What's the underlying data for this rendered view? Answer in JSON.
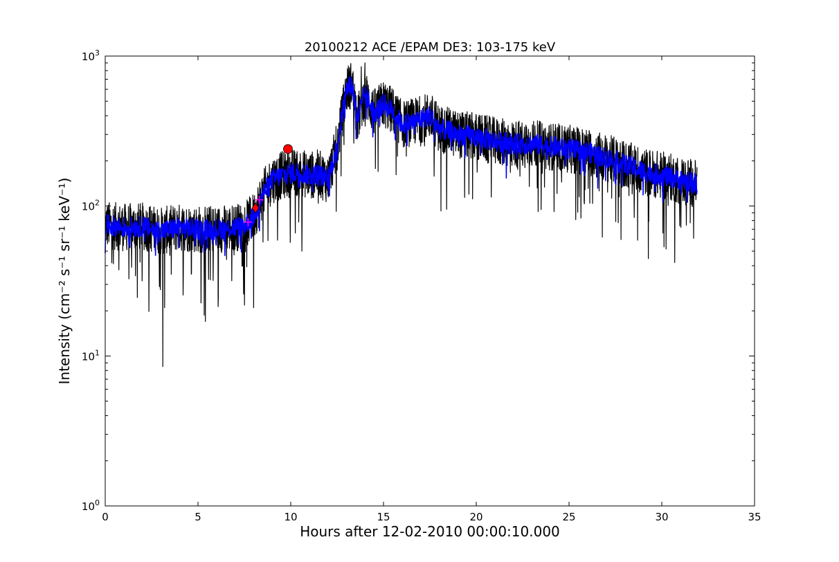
{
  "chart_data": {
    "type": "line",
    "title": "20100212 ACE /EPAM DE3: 103-175 keV",
    "xlabel": "Hours after 12-02-2010 00:00:10.000",
    "ylabel": "Intensity (cm⁻² s⁻¹ sr⁻¹ keV⁻¹)",
    "xlim": [
      0,
      35
    ],
    "ylim": [
      1,
      1000
    ],
    "yscale": "log",
    "grid": false,
    "legend": "none",
    "x_ticks": [
      {
        "value": 0,
        "label": "0"
      },
      {
        "value": 5,
        "label": "5"
      },
      {
        "value": 10,
        "label": "10"
      },
      {
        "value": 15,
        "label": "15"
      },
      {
        "value": 20,
        "label": "20"
      },
      {
        "value": 25,
        "label": "25"
      },
      {
        "value": 30,
        "label": "30"
      },
      {
        "value": 35,
        "label": "35"
      }
    ],
    "y_ticks": [
      {
        "value": 1,
        "base": "10",
        "exp": "0"
      },
      {
        "value": 10,
        "base": "10",
        "exp": "1"
      },
      {
        "value": 100,
        "base": "10",
        "exp": "2"
      },
      {
        "value": 1000,
        "base": "10",
        "exp": "3"
      }
    ],
    "series": [
      {
        "color": "#000000",
        "style": "raw-noisy",
        "x": [
          0,
          1,
          2,
          3,
          4,
          5,
          6,
          7,
          7.5,
          8,
          8.5,
          9,
          9.5,
          10,
          10.5,
          11,
          11.5,
          12,
          12.5,
          13,
          13.3,
          13.6,
          14,
          14.5,
          15,
          15.5,
          16,
          16.5,
          17,
          17.5,
          18,
          19,
          20,
          21,
          22,
          23,
          24,
          25,
          26,
          27,
          28,
          29,
          30,
          31,
          31.9
        ],
        "y": [
          75,
          72,
          73,
          68,
          72,
          70,
          70,
          72,
          74,
          85,
          120,
          150,
          160,
          165,
          168,
          160,
          165,
          150,
          250,
          600,
          650,
          380,
          560,
          420,
          480,
          430,
          350,
          360,
          380,
          400,
          330,
          300,
          290,
          270,
          260,
          260,
          250,
          240,
          230,
          210,
          190,
          170,
          160,
          150,
          140
        ],
        "outliers": [
          [
            3.1,
            8.5
          ],
          [
            5.4,
            17
          ],
          [
            10.6,
            50
          ],
          [
            14.0,
            900
          ],
          [
            13.8,
            850
          ],
          [
            8.0,
            21
          ],
          [
            3.2,
            21
          ],
          [
            30.7,
            42
          ],
          [
            26.8,
            62
          ]
        ]
      },
      {
        "color": "#0000ff",
        "style": "smoothed",
        "x": [
          0,
          1,
          2,
          3,
          4,
          5,
          6,
          7,
          7.5,
          8,
          8.5,
          9,
          9.5,
          10,
          10.5,
          11,
          11.5,
          12,
          12.5,
          13,
          13.3,
          13.6,
          14,
          14.5,
          15,
          15.5,
          16,
          16.5,
          17,
          17.5,
          18,
          19,
          20,
          21,
          22,
          23,
          24,
          25,
          26,
          27,
          28,
          29,
          30,
          31,
          31.9
        ],
        "y": [
          75,
          72,
          73,
          68,
          72,
          70,
          70,
          72,
          74,
          85,
          120,
          150,
          160,
          165,
          168,
          160,
          165,
          150,
          250,
          600,
          650,
          380,
          560,
          420,
          480,
          430,
          350,
          360,
          380,
          400,
          330,
          300,
          290,
          270,
          260,
          260,
          250,
          240,
          230,
          210,
          190,
          170,
          160,
          150,
          140
        ]
      }
    ],
    "markers": [
      {
        "x": 7.7,
        "y": 78,
        "shape": "plus",
        "color": "#ff00ff"
      },
      {
        "x": 8.3,
        "y": 110,
        "shape": "plus",
        "color": "#ff00ff"
      },
      {
        "x": 8.1,
        "y": 97,
        "shape": "diamond",
        "color": "#ff0000"
      },
      {
        "x": 9.85,
        "y": 240,
        "shape": "circle",
        "color": "#ff0000"
      }
    ]
  }
}
